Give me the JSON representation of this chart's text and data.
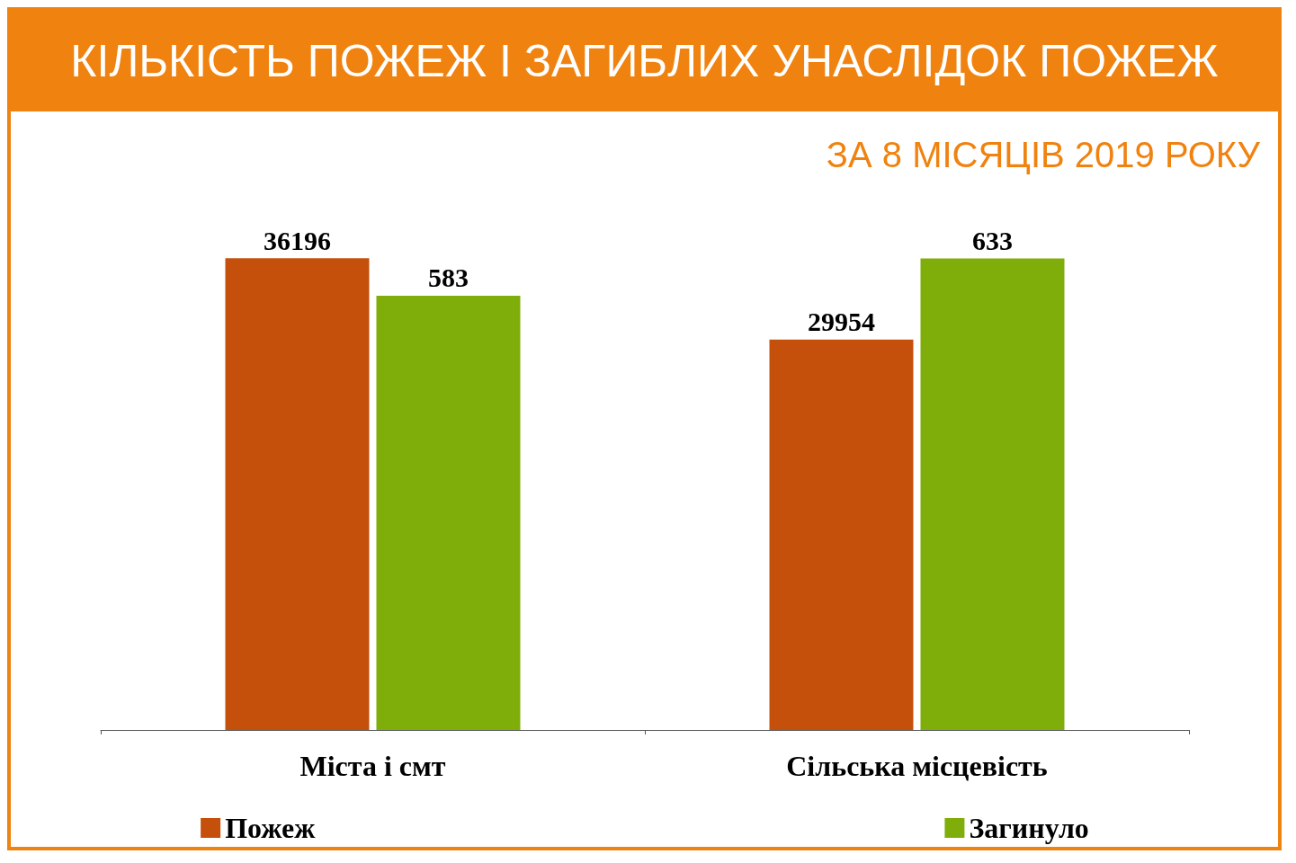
{
  "chart_data": {
    "type": "bar",
    "title": "КІЛЬКІСТЬ ПОЖЕЖ І ЗАГИБЛИХ УНАСЛІДОК ПОЖЕЖ",
    "subtitle": "ЗА 8 МІСЯЦІВ 2019 РОКУ",
    "categories": [
      "Міста і смт",
      "Сільська місцевість"
    ],
    "series": [
      {
        "name": "Пожеж",
        "color": "#c4500c",
        "values": [
          36196,
          29954
        ]
      },
      {
        "name": "Загинуло",
        "color": "#7fae0a",
        "values": [
          583,
          633
        ],
        "axis": "y2"
      }
    ],
    "data_labels": true,
    "legend": "bottom",
    "tick_labels": "x",
    "grid": false
  }
}
